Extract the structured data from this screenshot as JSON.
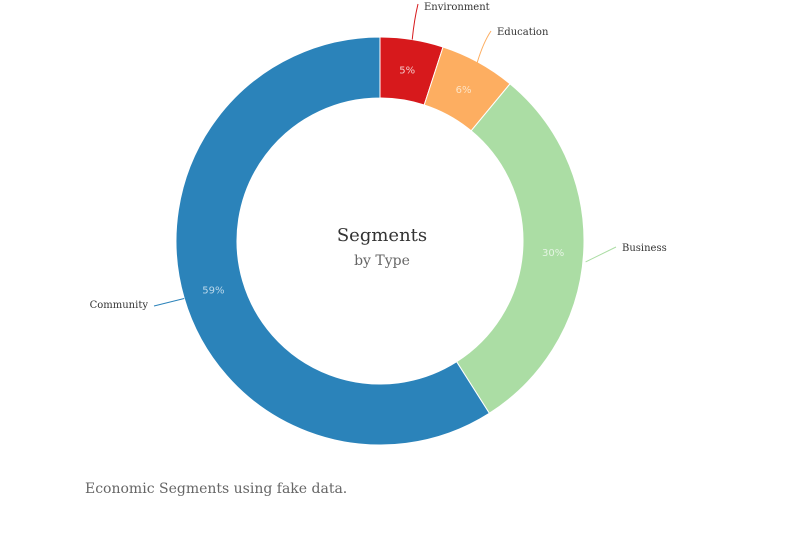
{
  "chart_data": {
    "type": "pie",
    "title": "Segments",
    "subtitle": "by Type",
    "caption": "Economic Segments using fake data.",
    "slices": [
      {
        "name": "Environment",
        "value": 5,
        "label": "5%",
        "color": "#d7191c",
        "label_color": "#f4c9c9"
      },
      {
        "name": "Education",
        "value": 6,
        "label": "6%",
        "color": "#fdae61",
        "label_color": "#fde4c6"
      },
      {
        "name": "Business",
        "value": 30,
        "label": "30%",
        "color": "#abdda4",
        "label_color": "#e4f4e2"
      },
      {
        "name": "Community",
        "value": 59,
        "label": "59%",
        "color": "#2b83ba",
        "label_color": "#bcd8ea"
      }
    ]
  }
}
